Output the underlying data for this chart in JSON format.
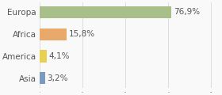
{
  "categories": [
    "Asia",
    "America",
    "Africa",
    "Europa"
  ],
  "values": [
    3.2,
    4.1,
    15.8,
    76.9
  ],
  "labels": [
    "3,2%",
    "4,1%",
    "15,8%",
    "76,9%"
  ],
  "bar_colors": [
    "#7a9abf",
    "#e8d050",
    "#e8a96a",
    "#a8bf8a"
  ],
  "background_color": "#f9f9f9",
  "xlim": [
    0,
    105
  ],
  "label_fontsize": 7.5,
  "tick_fontsize": 7.5,
  "grid_color": "#d8d8d8",
  "text_color": "#555555"
}
